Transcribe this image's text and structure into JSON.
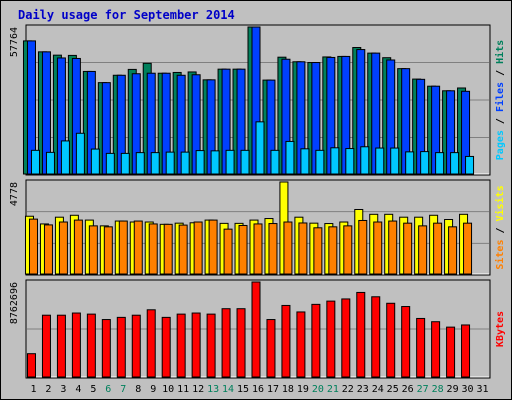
{
  "chart_data": [
    {
      "type": "bar",
      "title": "Daily usage for September 2014",
      "categories": [
        "1",
        "2",
        "3",
        "4",
        "5",
        "6",
        "7",
        "8",
        "9",
        "10",
        "11",
        "12",
        "13",
        "14",
        "15",
        "16",
        "17",
        "18",
        "19",
        "20",
        "21",
        "22",
        "23",
        "24",
        "25",
        "26",
        "27",
        "28",
        "29",
        "30",
        "31"
      ],
      "weekend_days": [
        "6",
        "7",
        "13",
        "14",
        "20",
        "21",
        "27",
        "28"
      ],
      "ymax_label": "57764",
      "ymax": 57764,
      "legend": [
        "Pages",
        "Files",
        "Hits"
      ],
      "series": [
        {
          "name": "Hits",
          "color": "#00805c",
          "values": [
            52300,
            48000,
            46700,
            46600,
            40300,
            35900,
            38800,
            41100,
            43500,
            39600,
            39900,
            40100,
            37000,
            41200,
            41200,
            57764,
            36900,
            45900,
            44100,
            43800,
            46000,
            46200,
            49700,
            47500,
            45700,
            41400,
            37300,
            34500,
            32700,
            33800,
            null
          ]
        },
        {
          "name": "Files",
          "color": "#0040ff",
          "values": [
            52300,
            48000,
            45600,
            45400,
            40300,
            35900,
            38800,
            39400,
            39600,
            39600,
            38800,
            39000,
            37000,
            41200,
            41200,
            57764,
            36900,
            45100,
            44100,
            43800,
            45800,
            46200,
            48900,
            47500,
            44800,
            41400,
            37200,
            34500,
            32700,
            32500,
            null
          ]
        },
        {
          "name": "Pages",
          "color": "#00c8ff",
          "values": [
            9300,
            8500,
            13000,
            16000,
            9800,
            8100,
            8100,
            8400,
            8400,
            8600,
            8600,
            9200,
            9100,
            9300,
            9300,
            20500,
            9300,
            12800,
            9900,
            9300,
            10300,
            10000,
            10700,
            10200,
            10200,
            8700,
            8800,
            8400,
            8400,
            6900,
            null
          ]
        }
      ]
    },
    {
      "type": "bar",
      "ymax_label": "4778",
      "ymax": 4778,
      "legend": [
        "Sites",
        "Visits"
      ],
      "series": [
        {
          "name": "Visits",
          "color": "#ffff00",
          "values": [
            3000,
            2600,
            2950,
            3050,
            2800,
            2500,
            2750,
            2700,
            2700,
            2580,
            2640,
            2660,
            2800,
            2630,
            2630,
            2800,
            2880,
            4778,
            2950,
            2640,
            2620,
            2700,
            3350,
            3100,
            3100,
            2950,
            2950,
            3050,
            2830,
            3100,
            null
          ]
        },
        {
          "name": "Sites",
          "color": "#ff8000",
          "values": [
            2850,
            2550,
            2700,
            2800,
            2500,
            2450,
            2750,
            2750,
            2600,
            2580,
            2540,
            2700,
            2800,
            2330,
            2520,
            2600,
            2620,
            2700,
            2650,
            2400,
            2450,
            2500,
            2780,
            2700,
            2750,
            2640,
            2500,
            2640,
            2450,
            2640,
            null
          ]
        }
      ]
    },
    {
      "type": "bar",
      "ymax_label": "8762696",
      "ymax": 8762696,
      "legend": [
        "KBytes"
      ],
      "series": [
        {
          "name": "KBytes",
          "color": "#ff0000",
          "values": [
            2150000,
            5700000,
            5700000,
            5900000,
            5800000,
            5300000,
            5500000,
            5700000,
            6200000,
            5500000,
            5800000,
            5900000,
            5800000,
            6300000,
            6300000,
            8762696,
            5300000,
            6600000,
            6000000,
            6700000,
            7000000,
            7200000,
            7800000,
            7400000,
            6800000,
            6500000,
            5400000,
            5100000,
            4600000,
            4800000,
            null
          ]
        }
      ]
    }
  ]
}
